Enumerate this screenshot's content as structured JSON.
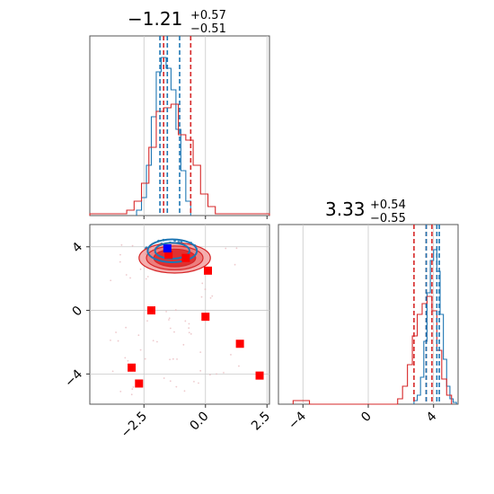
{
  "colors": {
    "blue": "#1f77b4",
    "red": "#d62728",
    "grid": "#c8c8c8",
    "contour_fill": "#f4a6a6",
    "contour_core": "#e03030"
  },
  "chart_data": [
    {
      "type": "histogram",
      "panel": "top-left",
      "title": {
        "main": "−1.21",
        "sup": "+0.57",
        "sub": "−0.51"
      },
      "xlim": [
        -4.7,
        2.6
      ],
      "ylim": [
        0,
        1
      ],
      "series": [
        {
          "color": "blue",
          "bins": [
            -2.8,
            -2.6,
            -2.4,
            -2.2,
            -2.0,
            -1.8,
            -1.6,
            -1.4,
            -1.2,
            -1.0,
            -0.8,
            -0.6
          ],
          "heights": [
            0.03,
            0.1,
            0.28,
            0.55,
            0.8,
            0.88,
            0.82,
            0.7,
            0.48,
            0.25,
            0.08
          ]
        },
        {
          "color": "red",
          "bins": [
            -4.7,
            -3.2,
            -2.9,
            -2.6,
            -2.3,
            -2.0,
            -1.7,
            -1.4,
            -1.1,
            -0.8,
            -0.5,
            -0.2,
            0.1,
            0.4,
            2.6
          ],
          "heights": [
            0.01,
            0.03,
            0.08,
            0.18,
            0.38,
            0.58,
            0.6,
            0.62,
            0.45,
            0.42,
            0.28,
            0.12,
            0.05,
            0.01
          ]
        }
      ],
      "vlines": [
        {
          "x": -1.85,
          "color": "blue"
        },
        {
          "x": -1.55,
          "color": "blue"
        },
        {
          "x": -1.05,
          "color": "blue"
        },
        {
          "x": -1.7,
          "color": "red"
        },
        {
          "x": -0.6,
          "color": "red"
        }
      ]
    },
    {
      "type": "scatter",
      "panel": "bottom-left",
      "xlim": [
        -4.7,
        2.6
      ],
      "ylim": [
        -5.9,
        5.4
      ],
      "xticks": [
        "−2.5",
        "0.0",
        "2.5"
      ],
      "xtick_values": [
        -2.5,
        0.0,
        2.5
      ],
      "yticks": [
        "−4",
        "0",
        "4"
      ],
      "ytick_values": [
        -4,
        0,
        4
      ],
      "red_squares": [
        {
          "x": -1.5,
          "y": 3.5
        },
        {
          "x": -0.8,
          "y": 3.3
        },
        {
          "x": 0.1,
          "y": 2.5
        },
        {
          "x": -2.2,
          "y": 0.0
        },
        {
          "x": 0.0,
          "y": -0.4
        },
        {
          "x": 1.4,
          "y": -2.1
        },
        {
          "x": 2.2,
          "y": -4.1
        },
        {
          "x": -3.0,
          "y": -3.6
        },
        {
          "x": -2.7,
          "y": -4.6
        }
      ],
      "blue_square": {
        "x": -1.55,
        "y": 3.9
      },
      "red_contour_center": {
        "x": -1.25,
        "y": 3.3
      },
      "blue_contour_center": {
        "x": -1.35,
        "y": 3.75
      }
    },
    {
      "type": "histogram",
      "panel": "bottom-right",
      "title": {
        "main": "3.33",
        "sup": "+0.54",
        "sub": "−0.55"
      },
      "xlim": [
        -5.5,
        5.5
      ],
      "ylim": [
        0,
        1
      ],
      "xticks": [
        "−4",
        "0",
        "4"
      ],
      "xtick_values": [
        -4,
        0,
        4
      ],
      "series": [
        {
          "color": "blue",
          "bins": [
            2.8,
            3.0,
            3.2,
            3.4,
            3.6,
            3.8,
            4.0,
            4.2,
            4.4,
            4.6,
            4.8,
            5.0,
            5.2,
            5.4
          ],
          "heights": [
            0.02,
            0.05,
            0.15,
            0.35,
            0.62,
            0.8,
            0.86,
            0.74,
            0.5,
            0.25,
            0.1,
            0.03,
            0.01
          ]
        },
        {
          "color": "red",
          "bins": [
            -4.6,
            -3.6,
            1.8,
            2.1,
            2.4,
            2.7,
            3.0,
            3.3,
            3.6,
            3.9,
            4.2,
            4.5,
            4.8,
            5.1
          ],
          "heights": [
            0.02,
            0.0,
            0.03,
            0.1,
            0.22,
            0.38,
            0.5,
            0.56,
            0.6,
            0.52,
            0.3,
            0.14,
            0.05
          ]
        }
      ],
      "vlines": [
        {
          "x": 2.8,
          "color": "red"
        },
        {
          "x": 3.55,
          "color": "red"
        },
        {
          "x": 3.9,
          "color": "red"
        },
        {
          "x": 3.55,
          "color": "blue"
        },
        {
          "x": 4.2,
          "color": "blue"
        },
        {
          "x": 4.35,
          "color": "blue"
        }
      ]
    }
  ]
}
